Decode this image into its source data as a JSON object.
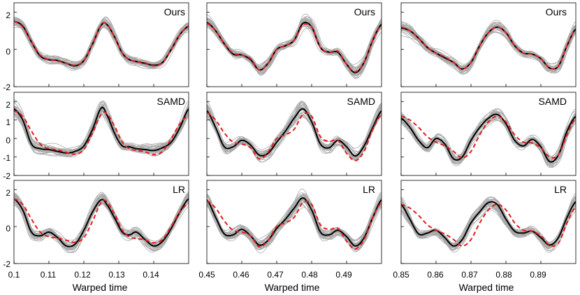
{
  "colors": {
    "samples": "#a9a9a9",
    "estimate": "#000000",
    "truth": "#e41a1c",
    "axis": "#000000"
  },
  "chart_data": {
    "type": "line",
    "title": "",
    "xlabel": "Warped time",
    "ylabel": "",
    "legend": "none",
    "series_styles": [
      {
        "name": "samples",
        "role": "posterior draws",
        "style": "thin gray lines"
      },
      {
        "name": "estimate",
        "role": "estimated function",
        "style": "solid black line"
      },
      {
        "name": "truth",
        "role": "true function",
        "style": "dashed red line"
      }
    ],
    "row_methods": [
      "Ours",
      "SAMD",
      "LR"
    ],
    "columns": [
      {
        "xlim": [
          0.1,
          0.15
        ],
        "x_ticks": [
          0.1,
          0.11,
          0.12,
          0.13,
          0.14
        ],
        "x_tick_labels": [
          "0.1",
          "0.11",
          "0.12",
          "0.13",
          "0.14"
        ]
      },
      {
        "xlim": [
          0.45,
          0.5
        ],
        "x_ticks": [
          0.45,
          0.46,
          0.47,
          0.48,
          0.49
        ],
        "x_tick_labels": [
          "0.45",
          "0.46",
          "0.47",
          "0.48",
          "0.49"
        ]
      },
      {
        "xlim": [
          0.85,
          0.9
        ],
        "x_ticks": [
          0.85,
          0.86,
          0.87,
          0.88,
          0.89
        ],
        "x_tick_labels": [
          "0.85",
          "0.86",
          "0.87",
          "0.88",
          "0.89"
        ]
      }
    ],
    "rows": [
      {
        "method": "Ours",
        "ylim": [
          -2,
          2.5
        ],
        "y_ticks": [
          -2,
          0,
          2
        ],
        "y_tick_labels": [
          "-2",
          "0",
          "2"
        ]
      },
      {
        "method": "SAMD",
        "ylim": [
          -2,
          2.5
        ],
        "y_ticks": [
          -2,
          -1,
          0,
          1,
          2
        ],
        "y_tick_labels": [
          "-2",
          "-1",
          "0",
          "1",
          "2"
        ]
      },
      {
        "method": "LR",
        "ylim": [
          -2,
          2.5
        ],
        "y_ticks": [
          -2,
          0,
          2
        ],
        "y_tick_labels": [
          "-2",
          "0",
          "2"
        ]
      }
    ],
    "samples_per_panel": 30,
    "curves": [
      {
        "truth": [
          [
            0,
            1.5
          ],
          [
            0.05,
            1.2
          ],
          [
            0.1,
            0.4
          ],
          [
            0.15,
            -0.3
          ],
          [
            0.2,
            -0.55
          ],
          [
            0.25,
            -0.62
          ],
          [
            0.3,
            -0.75
          ],
          [
            0.35,
            -0.85
          ],
          [
            0.4,
            -0.6
          ],
          [
            0.45,
            0.3
          ],
          [
            0.5,
            1.3
          ],
          [
            0.53,
            1.35
          ],
          [
            0.58,
            0.6
          ],
          [
            0.62,
            -0.2
          ],
          [
            0.66,
            -0.55
          ],
          [
            0.7,
            -0.65
          ],
          [
            0.75,
            -0.72
          ],
          [
            0.8,
            -0.88
          ],
          [
            0.85,
            -0.7
          ],
          [
            0.9,
            0
          ],
          [
            0.95,
            0.8
          ],
          [
            1,
            1.25
          ]
        ],
        "ours": [
          [
            0,
            1.5
          ],
          [
            0.05,
            1.25
          ],
          [
            0.1,
            0.4
          ],
          [
            0.15,
            -0.35
          ],
          [
            0.2,
            -0.55
          ],
          [
            0.25,
            -0.6
          ],
          [
            0.3,
            -0.75
          ],
          [
            0.35,
            -0.88
          ],
          [
            0.4,
            -0.6
          ],
          [
            0.45,
            0.3
          ],
          [
            0.5,
            1.3
          ],
          [
            0.53,
            1.35
          ],
          [
            0.58,
            0.6
          ],
          [
            0.62,
            -0.2
          ],
          [
            0.66,
            -0.55
          ],
          [
            0.7,
            -0.65
          ],
          [
            0.75,
            -0.75
          ],
          [
            0.8,
            -0.85
          ],
          [
            0.85,
            -0.7
          ],
          [
            0.9,
            0
          ],
          [
            0.95,
            0.8
          ],
          [
            1,
            1.25
          ]
        ],
        "samd": [
          [
            0,
            1.6
          ],
          [
            0.05,
            1.0
          ],
          [
            0.1,
            -0.3
          ],
          [
            0.15,
            -0.55
          ],
          [
            0.2,
            -0.6
          ],
          [
            0.25,
            -0.7
          ],
          [
            0.3,
            -0.78
          ],
          [
            0.35,
            -0.7
          ],
          [
            0.4,
            -0.4
          ],
          [
            0.45,
            0.5
          ],
          [
            0.5,
            1.65
          ],
          [
            0.53,
            1.3
          ],
          [
            0.58,
            0.2
          ],
          [
            0.62,
            -0.4
          ],
          [
            0.66,
            -0.45
          ],
          [
            0.7,
            -0.55
          ],
          [
            0.75,
            -0.6
          ],
          [
            0.8,
            -0.65
          ],
          [
            0.85,
            -0.5
          ],
          [
            0.9,
            -0.2
          ],
          [
            0.95,
            0.6
          ],
          [
            1,
            1.6
          ]
        ],
        "lr": [
          [
            0,
            1.5
          ],
          [
            0.05,
            0.9
          ],
          [
            0.1,
            -0.3
          ],
          [
            0.15,
            -0.5
          ],
          [
            0.2,
            -0.3
          ],
          [
            0.25,
            -0.6
          ],
          [
            0.3,
            -1.05
          ],
          [
            0.35,
            -0.95
          ],
          [
            0.4,
            -0.2
          ],
          [
            0.45,
            0.8
          ],
          [
            0.5,
            1.45
          ],
          [
            0.53,
            1.2
          ],
          [
            0.58,
            0.4
          ],
          [
            0.62,
            -0.3
          ],
          [
            0.66,
            -0.45
          ],
          [
            0.7,
            -0.3
          ],
          [
            0.75,
            -0.7
          ],
          [
            0.8,
            -1.05
          ],
          [
            0.85,
            -0.8
          ],
          [
            0.9,
            -0.1
          ],
          [
            0.95,
            0.8
          ],
          [
            1,
            1.5
          ]
        ]
      },
      {
        "truth": [
          [
            0,
            1.4
          ],
          [
            0.05,
            1.0
          ],
          [
            0.1,
            0.3
          ],
          [
            0.15,
            -0.2
          ],
          [
            0.2,
            -0.3
          ],
          [
            0.25,
            -0.5
          ],
          [
            0.3,
            -1.1
          ],
          [
            0.35,
            -0.75
          ],
          [
            0.4,
            0.0
          ],
          [
            0.45,
            0.2
          ],
          [
            0.5,
            0.5
          ],
          [
            0.55,
            1.3
          ],
          [
            0.6,
            1.2
          ],
          [
            0.65,
            0.1
          ],
          [
            0.7,
            -0.15
          ],
          [
            0.75,
            -0.1
          ],
          [
            0.8,
            -0.8
          ],
          [
            0.85,
            -1.2
          ],
          [
            0.9,
            -0.7
          ],
          [
            0.95,
            0.5
          ],
          [
            1,
            1.3
          ]
        ],
        "ours": [
          [
            0,
            1.45
          ],
          [
            0.05,
            1.0
          ],
          [
            0.1,
            0.3
          ],
          [
            0.15,
            -0.25
          ],
          [
            0.2,
            -0.3
          ],
          [
            0.25,
            -0.55
          ],
          [
            0.3,
            -1.1
          ],
          [
            0.35,
            -0.75
          ],
          [
            0.4,
            0.0
          ],
          [
            0.45,
            0.2
          ],
          [
            0.5,
            0.5
          ],
          [
            0.55,
            1.4
          ],
          [
            0.6,
            1.2
          ],
          [
            0.65,
            0.1
          ],
          [
            0.7,
            -0.15
          ],
          [
            0.75,
            -0.15
          ],
          [
            0.8,
            -0.8
          ],
          [
            0.85,
            -1.25
          ],
          [
            0.9,
            -0.7
          ],
          [
            0.95,
            0.5
          ],
          [
            1,
            1.35
          ]
        ],
        "samd": [
          [
            0,
            1.5
          ],
          [
            0.05,
            0.6
          ],
          [
            0.1,
            -0.45
          ],
          [
            0.15,
            -0.45
          ],
          [
            0.2,
            -0.1
          ],
          [
            0.25,
            -0.35
          ],
          [
            0.3,
            -0.9
          ],
          [
            0.35,
            -0.8
          ],
          [
            0.4,
            -0.2
          ],
          [
            0.45,
            0.4
          ],
          [
            0.5,
            1.1
          ],
          [
            0.55,
            1.6
          ],
          [
            0.6,
            0.9
          ],
          [
            0.65,
            -0.3
          ],
          [
            0.7,
            -0.5
          ],
          [
            0.75,
            -0.1
          ],
          [
            0.8,
            -0.45
          ],
          [
            0.85,
            -0.95
          ],
          [
            0.9,
            -0.4
          ],
          [
            0.95,
            0.6
          ],
          [
            1,
            1.5
          ]
        ],
        "lr": [
          [
            0,
            1.45
          ],
          [
            0.05,
            0.5
          ],
          [
            0.1,
            -0.4
          ],
          [
            0.15,
            -0.45
          ],
          [
            0.2,
            -0.15
          ],
          [
            0.25,
            -0.5
          ],
          [
            0.3,
            -1.0
          ],
          [
            0.35,
            -0.75
          ],
          [
            0.4,
            -0.1
          ],
          [
            0.45,
            0.4
          ],
          [
            0.5,
            1.0
          ],
          [
            0.55,
            1.55
          ],
          [
            0.6,
            0.9
          ],
          [
            0.65,
            -0.3
          ],
          [
            0.7,
            -0.45
          ],
          [
            0.75,
            -0.2
          ],
          [
            0.8,
            -0.55
          ],
          [
            0.85,
            -1.05
          ],
          [
            0.9,
            -0.6
          ],
          [
            0.95,
            0.5
          ],
          [
            1,
            1.45
          ]
        ]
      },
      {
        "truth": [
          [
            0,
            1.2
          ],
          [
            0.05,
            1.0
          ],
          [
            0.1,
            0.6
          ],
          [
            0.15,
            0.1
          ],
          [
            0.2,
            -0.2
          ],
          [
            0.25,
            -0.4
          ],
          [
            0.3,
            -0.7
          ],
          [
            0.35,
            -1.05
          ],
          [
            0.4,
            -0.7
          ],
          [
            0.45,
            0.2
          ],
          [
            0.5,
            0.9
          ],
          [
            0.55,
            1.2
          ],
          [
            0.6,
            0.9
          ],
          [
            0.65,
            0.2
          ],
          [
            0.7,
            -0.2
          ],
          [
            0.75,
            -0.25
          ],
          [
            0.8,
            -0.5
          ],
          [
            0.85,
            -1.0
          ],
          [
            0.9,
            -0.9
          ],
          [
            0.95,
            0.2
          ],
          [
            1,
            1.1
          ]
        ],
        "ours": [
          [
            0,
            1.15
          ],
          [
            0.05,
            1.0
          ],
          [
            0.1,
            0.6
          ],
          [
            0.15,
            0.1
          ],
          [
            0.2,
            -0.2
          ],
          [
            0.25,
            -0.45
          ],
          [
            0.3,
            -0.7
          ],
          [
            0.35,
            -1.05
          ],
          [
            0.4,
            -0.7
          ],
          [
            0.45,
            0.2
          ],
          [
            0.5,
            0.9
          ],
          [
            0.55,
            1.2
          ],
          [
            0.6,
            0.9
          ],
          [
            0.65,
            0.2
          ],
          [
            0.7,
            -0.2
          ],
          [
            0.75,
            -0.25
          ],
          [
            0.8,
            -0.5
          ],
          [
            0.85,
            -1.0
          ],
          [
            0.9,
            -0.9
          ],
          [
            0.95,
            0.2
          ],
          [
            1,
            1.1
          ]
        ],
        "samd": [
          [
            0,
            1.1
          ],
          [
            0.05,
            0.6
          ],
          [
            0.1,
            -0.1
          ],
          [
            0.15,
            -0.5
          ],
          [
            0.2,
            -0.0
          ],
          [
            0.25,
            -0.3
          ],
          [
            0.3,
            -1.1
          ],
          [
            0.35,
            -1.0
          ],
          [
            0.4,
            -0.1
          ],
          [
            0.45,
            0.6
          ],
          [
            0.5,
            1.1
          ],
          [
            0.55,
            1.3
          ],
          [
            0.6,
            0.8
          ],
          [
            0.65,
            -0.1
          ],
          [
            0.7,
            -0.4
          ],
          [
            0.75,
            -0.05
          ],
          [
            0.8,
            -0.45
          ],
          [
            0.85,
            -1.25
          ],
          [
            0.9,
            -0.9
          ],
          [
            0.95,
            0.4
          ],
          [
            1,
            1.2
          ]
        ],
        "lr": [
          [
            0,
            1.2
          ],
          [
            0.05,
            0.4
          ],
          [
            0.1,
            -0.4
          ],
          [
            0.15,
            -0.35
          ],
          [
            0.2,
            -0.2
          ],
          [
            0.25,
            -0.6
          ],
          [
            0.3,
            -1.05
          ],
          [
            0.35,
            -0.7
          ],
          [
            0.4,
            0.2
          ],
          [
            0.45,
            0.8
          ],
          [
            0.5,
            1.3
          ],
          [
            0.55,
            1.2
          ],
          [
            0.6,
            0.4
          ],
          [
            0.65,
            -0.25
          ],
          [
            0.7,
            -0.35
          ],
          [
            0.75,
            -0.25
          ],
          [
            0.8,
            -0.6
          ],
          [
            0.85,
            -1.0
          ],
          [
            0.9,
            -0.6
          ],
          [
            0.95,
            0.5
          ],
          [
            1,
            1.35
          ]
        ]
      }
    ]
  }
}
